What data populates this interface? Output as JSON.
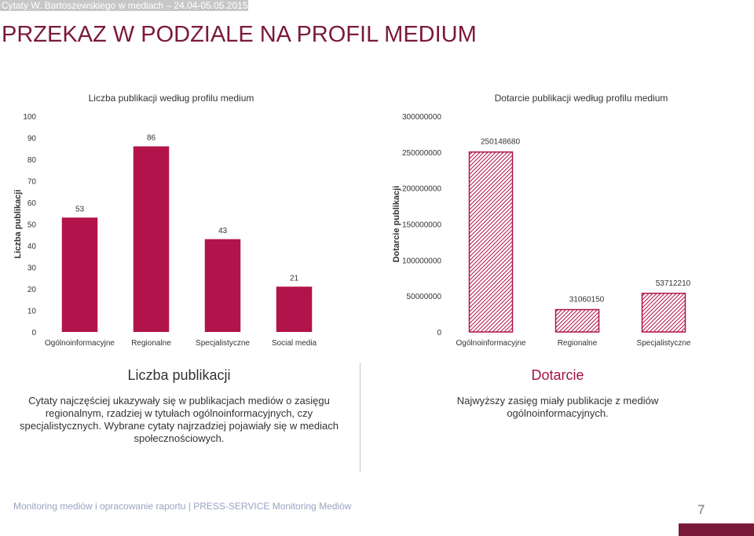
{
  "header": {
    "strip_text": "Cytaty W. Bartoszewskiego w mediach – 24.04-05.05.2015"
  },
  "slide": {
    "title": "PRZEKAZ W PODZIALE NA PROFIL MEDIUM"
  },
  "colors": {
    "bar_fill": "#b2134a",
    "accent": "#a3133f",
    "hatch": "#b2134a",
    "brand": "#7a1a3a"
  },
  "chart_data": [
    {
      "type": "bar",
      "title": "Liczba publikacji według profilu medium",
      "ylabel": "Liczba publikacji",
      "xlabel": "",
      "categories": [
        "Ogólnoinformacyjne",
        "Regionalne",
        "Specjalistyczne",
        "Social media"
      ],
      "values": [
        53,
        86,
        43,
        21
      ],
      "data_labels": [
        "53",
        "86",
        "43",
        "21"
      ],
      "ylim": [
        0,
        100
      ],
      "yticks": [
        "0",
        "10",
        "20",
        "30",
        "40",
        "50",
        "60",
        "70",
        "80",
        "90",
        "100"
      ],
      "grid": false,
      "fill": "solid"
    },
    {
      "type": "bar",
      "title": "Dotarcie publikacji według profilu medium",
      "ylabel": "Dotarcie publikacji",
      "xlabel": "",
      "categories": [
        "Ogólnoinformacyjne",
        "Regionalne",
        "Specjalistyczne"
      ],
      "values": [
        250148680,
        31060150,
        53712210
      ],
      "data_labels": [
        "250148680",
        "31060150",
        "53712210"
      ],
      "ylim": [
        0,
        300000000
      ],
      "yticks": [
        "0",
        "50000000",
        "100000000",
        "150000000",
        "200000000",
        "250000000",
        "300000000"
      ],
      "grid": false,
      "fill": "hatched"
    }
  ],
  "sections": {
    "left": {
      "heading": "Liczba publikacji",
      "body": "Cytaty najczęściej ukazywały się w publikacjach mediów o zasięgu regionalnym, rzadziej w tytułach ogólnoinformacyjnych, czy specjalistycznych. Wybrane cytaty najrzadziej pojawiały się w mediach społecznościowych."
    },
    "right": {
      "heading": "Dotarcie",
      "body": "Najwyższy zasięg miały publikacje z mediów ogólnoinformacyjnych."
    }
  },
  "footer": {
    "text": "Monitoring mediów i opracowanie raportu  |  PRESS-SERVICE Monitoring Mediów",
    "page_number": "7"
  }
}
